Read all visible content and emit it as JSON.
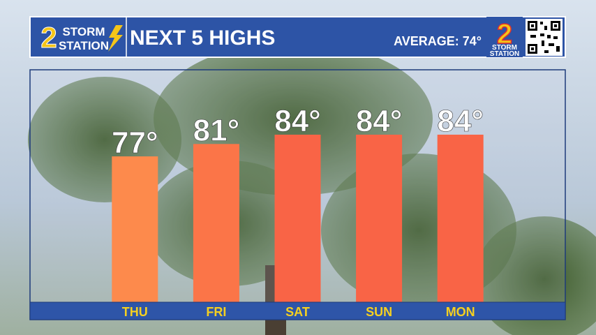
{
  "chart_data": {
    "type": "bar",
    "title": "NEXT 5 HIGHS",
    "average_label": "AVERAGE: 74°",
    "logo": {
      "number": "2",
      "line1": "STORM",
      "line2": "STATION"
    },
    "categories": [
      "THU",
      "FRI",
      "SAT",
      "SUN",
      "MON"
    ],
    "values": [
      77,
      81,
      84,
      84,
      84
    ],
    "value_labels": [
      "77°",
      "81°",
      "84°",
      "84°",
      "84°"
    ],
    "colors": [
      "#fd8a4c",
      "#fb7548",
      "#f96446",
      "#f96446",
      "#f96446"
    ],
    "ylim": [
      30,
      90
    ]
  }
}
